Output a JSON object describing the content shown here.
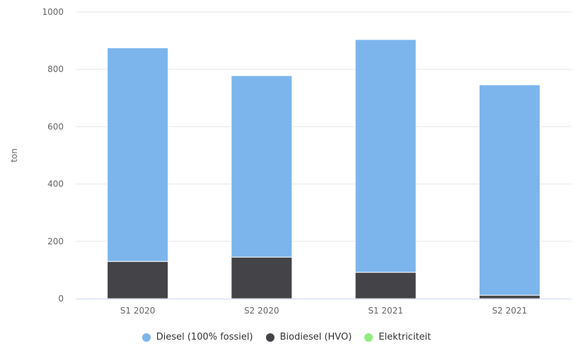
{
  "chart_data": {
    "type": "bar",
    "stacked": true,
    "categories": [
      "S1 2020",
      "S2 2020",
      "S1 2021",
      "S2 2021"
    ],
    "series": [
      {
        "name": "Diesel (100% fossiel)",
        "color": "#7cb5ec",
        "values": [
          745,
          633,
          812,
          734
        ]
      },
      {
        "name": "Biodiesel (HVO)",
        "color": "#434348",
        "values": [
          130,
          145,
          92,
          12
        ]
      },
      {
        "name": "Elektriciteit",
        "color": "#90ed7d",
        "values": [
          0,
          0,
          0,
          0
        ]
      }
    ],
    "ylabel": "ton",
    "ylim": [
      0,
      1000
    ],
    "yticks": [
      0,
      200,
      400,
      600,
      800,
      1000
    ],
    "grid": true,
    "legend_position": "bottom"
  }
}
